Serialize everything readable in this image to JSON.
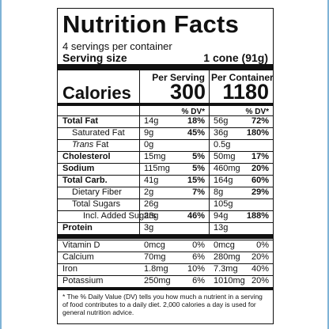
{
  "title": "Nutrition Facts",
  "servings": "4 servings per container",
  "serving_size": {
    "label": "Serving size",
    "value": "1 cone (91g)"
  },
  "calories": {
    "label": "Calories",
    "per_serving": {
      "heading": "Per Serving",
      "value": "300"
    },
    "per_container": {
      "heading": "Per Container",
      "value": "1180"
    }
  },
  "dv_headers": [
    "% DV*",
    "% DV*"
  ],
  "nutrients": [
    {
      "name": "Total Fat",
      "serving_amount": "14g",
      "serving_dv": "18%",
      "container_amount": "56g",
      "container_dv": "72%"
    },
    {
      "name": "Saturated Fat",
      "serving_amount": "9g",
      "serving_dv": "45%",
      "container_amount": "36g",
      "container_dv": "180%"
    },
    {
      "name": {
        "italic": "Trans",
        "text": "Fat"
      },
      "serving_amount": "0g",
      "container_amount": "0.5g"
    },
    {
      "name": "Cholesterol",
      "serving_amount": "15mg",
      "serving_dv": "5%",
      "container_amount": "50mg",
      "container_dv": "17%"
    },
    {
      "name": "Sodium",
      "serving_amount": "115mg",
      "serving_dv": "5%",
      "container_amount": "460mg",
      "container_dv": "20%"
    },
    {
      "name": "Total Carb.",
      "serving_amount": "41g",
      "serving_dv": "15%",
      "container_amount": "164g",
      "container_dv": "60%"
    },
    {
      "name": "Dietary Fiber",
      "serving_amount": "2g",
      "serving_dv": "7%",
      "container_amount": "8g",
      "container_dv": "29%"
    },
    {
      "name": "Total Sugars",
      "serving_amount": "26g",
      "container_amount": "105g"
    },
    {
      "name": "Incl. Added Sugars",
      "serving_amount": "23g",
      "serving_dv": "46%",
      "container_amount": "94g",
      "container_dv": "188%"
    },
    {
      "name": "Protein",
      "serving_amount": "3g",
      "container_amount": "13g"
    }
  ],
  "vitamins": [
    {
      "name": "Vitamin D",
      "serving_amount": "0mcg",
      "serving_dv": "0%",
      "container_amount": "0mcg",
      "container_dv": "0%"
    },
    {
      "name": "Calcium",
      "serving_amount": "70mg",
      "serving_dv": "6%",
      "container_amount": "280mg",
      "container_dv": "20%"
    },
    {
      "name": "Iron",
      "serving_amount": "1.8mg",
      "serving_dv": "10%",
      "container_amount": "7.3mg",
      "container_dv": "40%"
    },
    {
      "name": "Potassium",
      "serving_amount": "250mg",
      "serving_dv": "6%",
      "container_amount": "1010mg",
      "container_dv": "20%"
    }
  ],
  "footnote": "* The % Daily Value (DV) tells you how much a nutrient in a serving of food contributes to a daily diet. 2,000 calories a day is used for general nutrition advice."
}
